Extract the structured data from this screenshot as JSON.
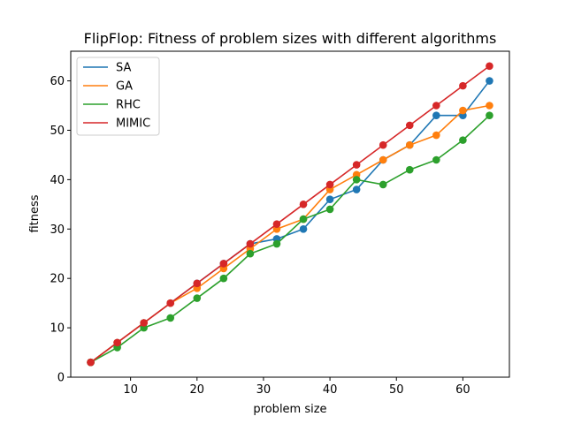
{
  "chart_data": {
    "type": "line",
    "title": "FlipFlop: Fitness of problem sizes with different algorithms",
    "xlabel": "problem size",
    "ylabel": "fitness",
    "xlim": [
      1,
      67
    ],
    "ylim": [
      0,
      66
    ],
    "xticks": [
      10,
      20,
      30,
      40,
      50,
      60
    ],
    "yticks": [
      0,
      10,
      20,
      30,
      40,
      50,
      60
    ],
    "grid": false,
    "legend_position": "top-left",
    "x": [
      4,
      8,
      12,
      16,
      20,
      24,
      28,
      32,
      36,
      40,
      44,
      48,
      52,
      56,
      60,
      64
    ],
    "series": [
      {
        "name": "SA",
        "color": "#1f77b4",
        "values": [
          3,
          7,
          11,
          15,
          19,
          23,
          27,
          28,
          30,
          36,
          38,
          44,
          47,
          53,
          53,
          60
        ]
      },
      {
        "name": "GA",
        "color": "#ff7f0e",
        "values": [
          3,
          7,
          11,
          15,
          18,
          22,
          26,
          30,
          32,
          38,
          41,
          44,
          47,
          49,
          54,
          55
        ]
      },
      {
        "name": "RHC",
        "color": "#2ca02c",
        "values": [
          3,
          6,
          10,
          12,
          16,
          20,
          25,
          27,
          32,
          34,
          40,
          39,
          42,
          44,
          48,
          53
        ]
      },
      {
        "name": "MIMIC",
        "color": "#d62728",
        "values": [
          3,
          7,
          11,
          15,
          19,
          23,
          27,
          31,
          35,
          39,
          43,
          47,
          51,
          55,
          59,
          63
        ]
      }
    ]
  }
}
